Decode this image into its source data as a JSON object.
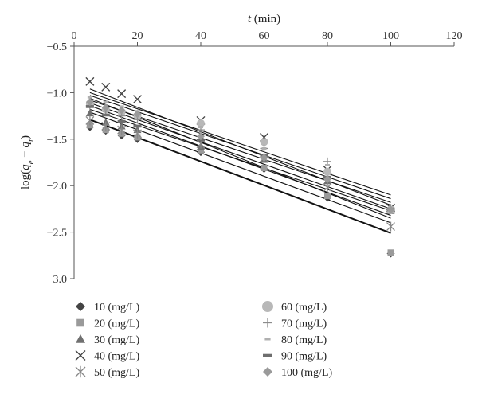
{
  "chart_data": {
    "type": "scatter",
    "title": "",
    "xlabel": {
      "italic": "t",
      "rest": " (min)"
    },
    "ylabel": "log(q_e − q_t)",
    "xlim": [
      0,
      120
    ],
    "ylim": [
      -3.0,
      -0.5
    ],
    "x_ticks": [
      0,
      20,
      40,
      60,
      80,
      100,
      120
    ],
    "y_ticks": [
      -0.5,
      -1.0,
      -1.5,
      -2.0,
      -2.5,
      -3.0
    ],
    "x_tick_labels": [
      "0",
      "20",
      "40",
      "60",
      "80",
      "100",
      "120"
    ],
    "y_tick_labels": [
      "−0.5",
      "−1.0",
      "−1.5",
      "−2.0",
      "−2.5",
      "−3.0"
    ],
    "x_axis_position": "top",
    "grid": false,
    "legend_position": "bottom",
    "series": [
      {
        "name": "10 (mg/L)",
        "marker": "diamond",
        "color": "#444444",
        "x": [
          5,
          10,
          15,
          20,
          40,
          60,
          80,
          100
        ],
        "y": [
          -1.37,
          -1.41,
          -1.46,
          -1.5,
          -1.64,
          -1.82,
          -2.13,
          -2.73
        ],
        "fit": [
          -1.29,
          -2.51
        ]
      },
      {
        "name": "20 (mg/L)",
        "marker": "square",
        "color": "#9a9a9a",
        "x": [
          5,
          10,
          15,
          20,
          40,
          60,
          80,
          100
        ],
        "y": [
          -1.35,
          -1.4,
          -1.44,
          -1.48,
          -1.62,
          -1.81,
          -2.11,
          -2.72
        ],
        "fit": [
          -1.21,
          -2.4
        ]
      },
      {
        "name": "30 (mg/L)",
        "marker": "triangle",
        "color": "#707070",
        "x": [
          5,
          10,
          15,
          20,
          40,
          60,
          80,
          100
        ],
        "y": [
          -1.22,
          -1.32,
          -1.36,
          -1.4,
          -1.58,
          -1.72,
          -1.95,
          -2.27
        ],
        "fit": [
          -1.14,
          -2.32
        ]
      },
      {
        "name": "40 (mg/L)",
        "marker": "x",
        "color": "#444444",
        "x": [
          5,
          10,
          15,
          20,
          40,
          60,
          80,
          100
        ],
        "y": [
          -0.88,
          -0.94,
          -1.01,
          -1.07,
          -1.3,
          -1.48,
          -1.83,
          -2.24
        ],
        "fit": [
          -0.96,
          -2.21
        ]
      },
      {
        "name": "50 (mg/L)",
        "marker": "asterisk",
        "color": "#888888",
        "x": [
          5,
          10,
          15,
          20,
          40,
          60,
          80,
          100
        ],
        "y": [
          -1.3,
          -1.36,
          -1.4,
          -1.44,
          -1.55,
          -1.7,
          -2.02,
          -2.44
        ],
        "fit": [
          -1.18,
          -2.27
        ]
      },
      {
        "name": "60 (mg/L)",
        "marker": "circle",
        "color": "#b8b8b8",
        "x": [
          5,
          10,
          15,
          20,
          40,
          60,
          80,
          100
        ],
        "y": [
          -1.12,
          -1.18,
          -1.21,
          -1.25,
          -1.33,
          -1.53,
          -1.85,
          -2.26
        ],
        "fit": [
          -1.03,
          -2.14
        ]
      },
      {
        "name": "70 (mg/L)",
        "marker": "plus",
        "color": "#8c8c8c",
        "x": [
          5,
          10,
          15,
          20,
          40,
          60,
          80,
          100
        ],
        "y": [
          -1.14,
          -1.2,
          -1.25,
          -1.29,
          -1.4,
          -1.6,
          -1.74,
          -2.24
        ],
        "fit": [
          -1.08,
          -2.18
        ]
      },
      {
        "name": "80 (mg/L)",
        "marker": "dash",
        "color": "#b0b0b0",
        "x": [
          5,
          10,
          15,
          20,
          40,
          60,
          80,
          100
        ],
        "y": [
          -1.05,
          -1.1,
          -1.15,
          -1.2,
          -1.37,
          -1.6,
          -1.78,
          -2.26
        ],
        "fit": [
          -1.0,
          -2.1
        ]
      },
      {
        "name": "90 (mg/L)",
        "marker": "bar",
        "color": "#6e6e6e",
        "x": [
          5,
          10,
          15,
          20,
          40,
          60,
          80,
          100
        ],
        "y": [
          -1.15,
          -1.24,
          -1.31,
          -1.36,
          -1.51,
          -1.68,
          -1.91,
          -2.26
        ],
        "fit": [
          -1.11,
          -2.25
        ]
      },
      {
        "name": "100 (mg/L)",
        "marker": "diamond",
        "color": "#9a9a9a",
        "x": [
          5,
          10,
          15,
          20,
          40,
          60,
          80,
          100
        ],
        "y": [
          -1.1,
          -1.16,
          -1.19,
          -1.23,
          -1.47,
          -1.7,
          -1.93,
          -2.26
        ],
        "fit": [
          -1.06,
          -2.35
        ]
      }
    ]
  }
}
